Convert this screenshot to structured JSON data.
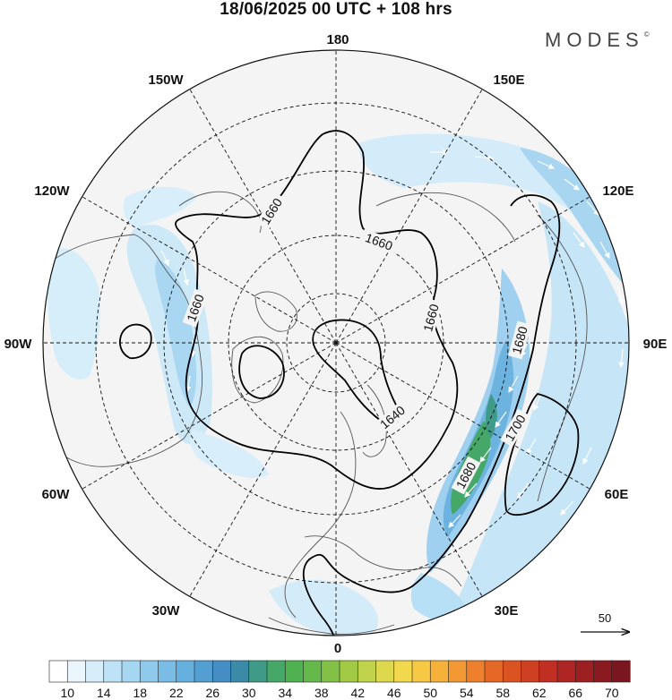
{
  "header": {
    "title": "18/06/2025  00 UTC  + 108 hrs",
    "brand": "MODES",
    "brand_mark": "©"
  },
  "map": {
    "projection": "north-polar-stereographic",
    "longitude_labels": {
      "top": "180",
      "upper_left": "150W",
      "upper_right": "150E",
      "left_high": "120W",
      "right_high": "120E",
      "left": "90W",
      "right": "90E",
      "left_low": "60W",
      "right_low": "60E",
      "lower_left": "30W",
      "lower_right": "30E",
      "bottom": "0"
    },
    "contour_labels": [
      "1660",
      "1660",
      "1660",
      "1660",
      "1640",
      "1680",
      "1680",
      "1700"
    ],
    "vector_reference": "50",
    "colors": {
      "land_outline": "#555555",
      "grid": "#111111",
      "contour": "#000000",
      "vector": "#ffffff"
    }
  },
  "colorbar": {
    "labels": [
      "10",
      "14",
      "18",
      "22",
      "26",
      "30",
      "34",
      "38",
      "42",
      "46",
      "50",
      "54",
      "58",
      "62",
      "66",
      "70"
    ],
    "colors": [
      "#ffffff",
      "#eaf6fc",
      "#d6eefa",
      "#bfe3f6",
      "#a6d7f1",
      "#8ecaec",
      "#79bde6",
      "#66b0df",
      "#539fd2",
      "#448ec5",
      "#3b8aa8",
      "#3f9a87",
      "#45a868",
      "#4fb150",
      "#65b94a",
      "#82c146",
      "#a2ca45",
      "#c1d24b",
      "#ded84f",
      "#f2d84c",
      "#f7c843",
      "#f6b13b",
      "#f39933",
      "#ee7f2c",
      "#e66827",
      "#dc5323",
      "#cf3f22",
      "#c02f22",
      "#ae2523",
      "#9c1f22",
      "#8a1a20",
      "#7a161d"
    ]
  }
}
